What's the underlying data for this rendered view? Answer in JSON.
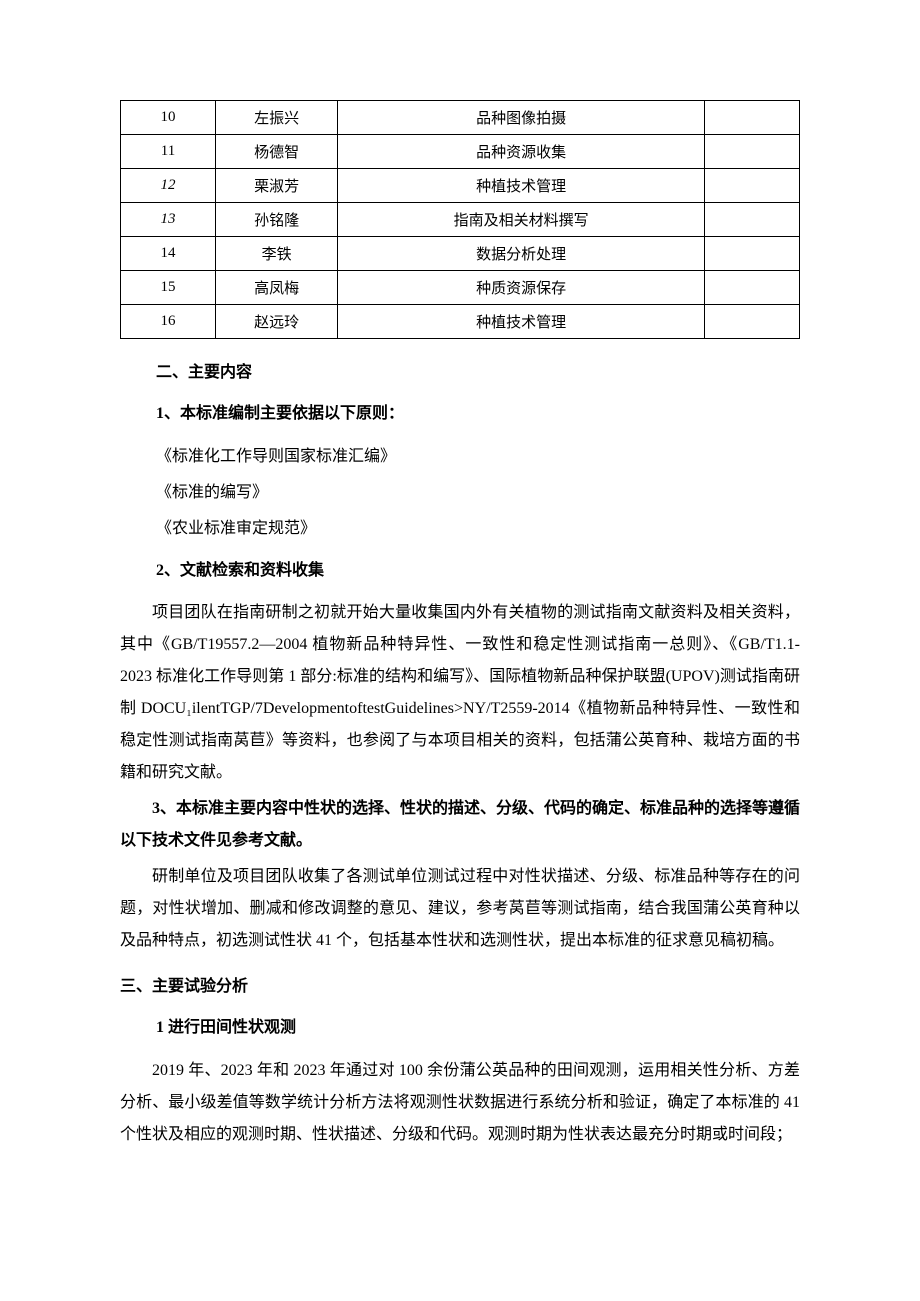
{
  "table": {
    "rows": [
      {
        "num": "10",
        "name": "左振兴",
        "role": "品种图像拍摄",
        "note": "",
        "italic": false
      },
      {
        "num": "11",
        "name": "杨德智",
        "role": "品种资源收集",
        "note": "",
        "italic": false
      },
      {
        "num": "12",
        "name": "栗淑芳",
        "role": "种植技术管理",
        "note": "",
        "italic": true
      },
      {
        "num": "13",
        "name": "孙铭隆",
        "role": "指南及相关材料撰写",
        "note": "",
        "italic": true
      },
      {
        "num": "14",
        "name": "李铁",
        "role": "数据分析处理",
        "note": "",
        "italic": false
      },
      {
        "num": "15",
        "name": "高凤梅",
        "role": "种质资源保存",
        "note": "",
        "italic": false
      },
      {
        "num": "16",
        "name": "赵远玲",
        "role": "种植技术管理",
        "note": "",
        "italic": false
      }
    ],
    "border_color": "#000000",
    "background_color": "#ffffff",
    "text_color": "#000000",
    "font_size": 15,
    "col_widths": [
      "14%",
      "18%",
      "54%",
      "14%"
    ]
  },
  "sections": {
    "s2_heading": "二、主要内容",
    "s2_1_heading": "1、本标准编制主要依据以下原则：",
    "s2_1_items": [
      "《标准化工作导则国家标准汇编》",
      "《标准的编写》",
      "《农业标准审定规范》"
    ],
    "s2_2_heading": "2、文献检索和资料收集",
    "s2_2_para": "项目团队在指南研制之初就开始大量收集国内外有关植物的测试指南文献资料及相关资料，其中《GB/T19557.2—2004 植物新品种特异性、一致性和稳定性测试指南一总则》、《GB/T1.1-2023 标准化工作导则第 1 部分:标准的结构和编写》、国际植物新品种保护联盟(UPOV)测试指南研制 DOCU₁ilentTGP/7DevelopmentoftestGuidelines>NY/T2559-2014《植物新品种特异性、一致性和稳定性测试指南莴苣》等资料，也参阅了与本项目相关的资料，包括蒲公英育种、栽培方面的书籍和研究文献。",
    "s2_3_heading": "3、本标准主要内容中性状的选择、性状的描述、分级、代码的确定、标准品种的选择等遵循以下技术文件见参考文献。",
    "s2_3_para": "研制单位及项目团队收集了各测试单位测试过程中对性状描述、分级、标准品种等存在的问题，对性状增加、删减和修改调整的意见、建议，参考莴苣等测试指南，结合我国蒲公英育种以及品种特点，初选测试性状 41 个，包括基本性状和选测性状，提出本标准的征求意见稿初稿。",
    "s3_heading": "三、主要试验分析",
    "s3_1_heading": "1 进行田间性状观测",
    "s3_1_para": "2019 年、2023 年和 2023 年通过对 100 余份蒲公英品种的田间观测，运用相关性分析、方差分析、最小级差值等数学统计分析方法将观测性状数据进行系统分析和验证，确定了本标准的 41 个性状及相应的观测时期、性状描述、分级和代码。观测时期为性状表达最充分时期或时间段；"
  },
  "styles": {
    "page_background": "#ffffff",
    "text_color": "#000000",
    "body_font_size": 16,
    "heading_font_weight": "bold",
    "line_height": 2
  }
}
